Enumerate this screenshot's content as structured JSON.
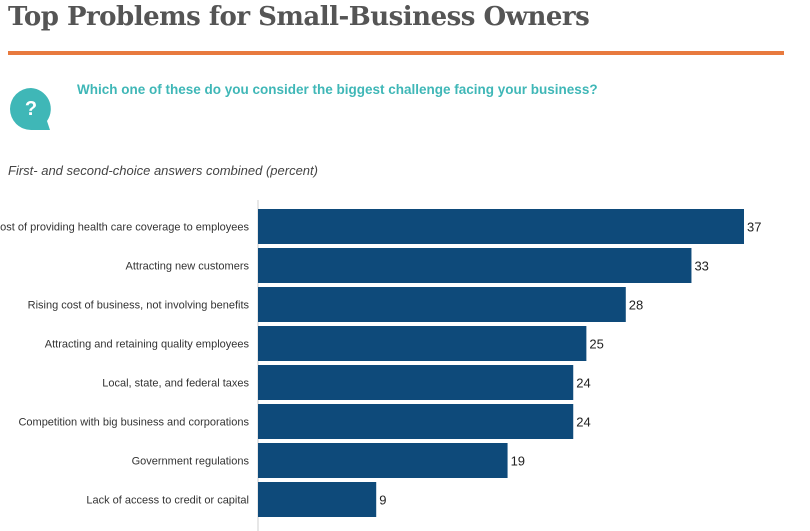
{
  "header": {
    "title": "Top Problems for Small-Business Owners",
    "question": "Which one of these do you consider the biggest challenge facing your business?",
    "subtitle": "First- and second-choice answers combined (percent)",
    "question_icon_glyph": "?"
  },
  "colors": {
    "bar": "#0e4a7a",
    "accent_rule": "#e87a3e",
    "question_text": "#3fb7b7",
    "icon": "#3fb7b7"
  },
  "chart_data": {
    "type": "bar",
    "orientation": "horizontal",
    "categories": [
      "Cost of providing health care coverage to employees",
      "Attracting new customers",
      "Rising cost of business, not involving benefits",
      "Attracting and retaining quality employees",
      "Local, state, and federal taxes",
      "Competition with big business and corporations",
      "Government regulations",
      "Lack of access to credit or capital"
    ],
    "values": [
      37,
      33,
      28,
      25,
      24,
      24,
      19,
      9
    ],
    "xlim": [
      0,
      37
    ],
    "grid": false,
    "legend": "none"
  }
}
